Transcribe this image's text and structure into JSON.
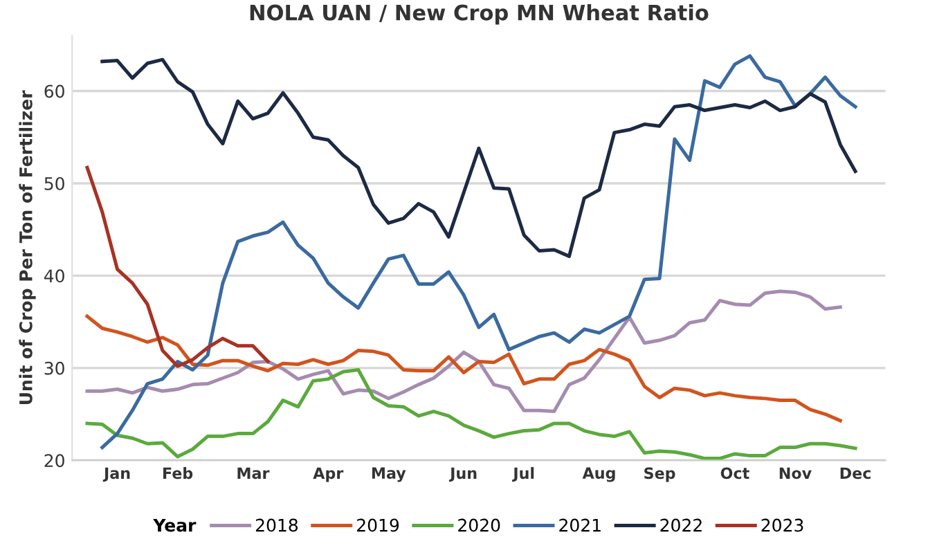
{
  "chart_data": {
    "type": "line",
    "title": "NOLA UAN / New Crop MN Wheat Ratio",
    "ylabel": "Unit of Crop Per Ton of Fertilizer",
    "legend_title": "Year",
    "legend": "bottom",
    "grid": "y",
    "marker": "none",
    "line_style": "solid",
    "categories": [
      null,
      null,
      "Jan",
      null,
      null,
      null,
      "Feb",
      null,
      null,
      null,
      null,
      "Mar",
      null,
      null,
      null,
      null,
      "Apr",
      null,
      null,
      null,
      "May",
      null,
      null,
      null,
      null,
      "Jun",
      null,
      null,
      null,
      "Jul",
      null,
      null,
      null,
      null,
      "Aug",
      null,
      null,
      null,
      "Sep",
      null,
      null,
      null,
      null,
      "Oct",
      null,
      null,
      null,
      "Nov",
      null,
      null,
      null,
      "Dec"
    ],
    "ylim": [
      20,
      66
    ],
    "yticks": [
      20,
      30,
      40,
      50,
      60
    ],
    "series": [
      {
        "name": "2018",
        "color": "#a68bb0",
        "values": [
          27.5,
          27.5,
          27.7,
          27.3,
          27.9,
          27.5,
          27.7,
          28.2,
          28.3,
          28.9,
          29.5,
          30.6,
          30.7,
          29.9,
          28.8,
          29.3,
          29.7,
          27.2,
          27.6,
          27.5,
          26.7,
          27.4,
          28.2,
          28.9,
          30.2,
          31.7,
          30.7,
          28.2,
          27.8,
          25.4,
          25.4,
          25.3,
          28.2,
          28.9,
          30.9,
          33.2,
          35.5,
          32.7,
          33.0,
          33.5,
          34.9,
          35.2,
          37.3,
          36.9,
          36.8,
          38.1,
          38.3,
          38.2,
          37.7,
          36.4,
          36.6,
          null
        ]
      },
      {
        "name": "2019",
        "color": "#d2541e",
        "values": [
          35.6,
          34.3,
          33.9,
          33.4,
          32.8,
          33.3,
          32.5,
          30.4,
          30.3,
          30.8,
          30.8,
          30.2,
          29.7,
          30.5,
          30.4,
          30.9,
          30.4,
          30.8,
          31.9,
          31.8,
          31.4,
          29.8,
          29.7,
          29.7,
          31.2,
          29.5,
          30.7,
          30.6,
          31.5,
          28.3,
          28.8,
          28.8,
          30.4,
          30.8,
          32.0,
          31.5,
          30.8,
          28.0,
          26.8,
          27.8,
          27.6,
          27.0,
          27.3,
          27.0,
          26.8,
          26.7,
          26.5,
          26.5,
          25.5,
          25.0,
          24.3,
          null
        ]
      },
      {
        "name": "2020",
        "color": "#5aaa3c",
        "values": [
          24.0,
          23.9,
          22.7,
          22.4,
          21.8,
          21.9,
          20.4,
          21.2,
          22.6,
          22.6,
          22.9,
          22.9,
          24.2,
          26.5,
          25.8,
          28.6,
          28.8,
          29.6,
          29.8,
          26.8,
          25.9,
          25.8,
          24.8,
          25.3,
          24.8,
          23.8,
          23.2,
          22.5,
          22.9,
          23.2,
          23.3,
          24.0,
          24.0,
          23.2,
          22.8,
          22.6,
          23.1,
          20.8,
          21.0,
          20.9,
          20.6,
          20.2,
          20.2,
          20.7,
          20.5,
          20.5,
          21.4,
          21.4,
          21.8,
          21.8,
          21.6,
          21.3
        ]
      },
      {
        "name": "2021",
        "color": "#3a6aa0",
        "values": [
          null,
          21.4,
          22.9,
          25.4,
          28.3,
          28.8,
          30.7,
          29.8,
          31.4,
          39.2,
          43.7,
          44.3,
          44.7,
          45.8,
          43.3,
          41.9,
          39.2,
          37.7,
          36.5,
          39.2,
          41.8,
          42.2,
          39.1,
          39.1,
          40.4,
          37.9,
          34.4,
          35.8,
          32.0,
          32.7,
          33.4,
          33.8,
          32.8,
          34.2,
          33.8,
          34.7,
          35.6,
          39.6,
          39.7,
          54.8,
          52.5,
          61.1,
          60.4,
          62.9,
          63.8,
          61.5,
          61.0,
          58.4,
          59.7,
          61.5,
          59.5,
          58.3
        ]
      },
      {
        "name": "2022",
        "color": "#1c2a44",
        "values": [
          null,
          63.2,
          63.3,
          61.4,
          63.0,
          63.4,
          61.0,
          59.9,
          56.4,
          54.3,
          58.9,
          57.0,
          57.6,
          59.8,
          57.6,
          55.0,
          54.7,
          53.0,
          51.7,
          47.7,
          45.7,
          46.2,
          47.8,
          46.9,
          44.2,
          49.0,
          53.8,
          49.5,
          49.4,
          44.4,
          42.7,
          42.8,
          42.1,
          48.4,
          49.3,
          55.5,
          55.8,
          56.4,
          56.2,
          58.3,
          58.5,
          57.9,
          58.2,
          58.5,
          58.2,
          58.9,
          57.9,
          58.3,
          59.7,
          58.8,
          54.2,
          51.3
        ]
      },
      {
        "name": "2023",
        "color": "#a83224",
        "values": [
          51.7,
          46.9,
          40.7,
          39.2,
          36.9,
          31.9,
          30.2,
          30.9,
          32.2,
          33.2,
          32.4,
          32.4,
          30.7,
          null,
          null,
          null,
          null,
          null,
          null,
          null,
          null,
          null,
          null,
          null,
          null,
          null,
          null,
          null,
          null,
          null,
          null,
          null,
          null,
          null,
          null,
          null,
          null,
          null,
          null,
          null,
          null,
          null,
          null,
          null,
          null,
          null,
          null,
          null,
          null,
          null,
          null,
          null
        ]
      }
    ]
  }
}
